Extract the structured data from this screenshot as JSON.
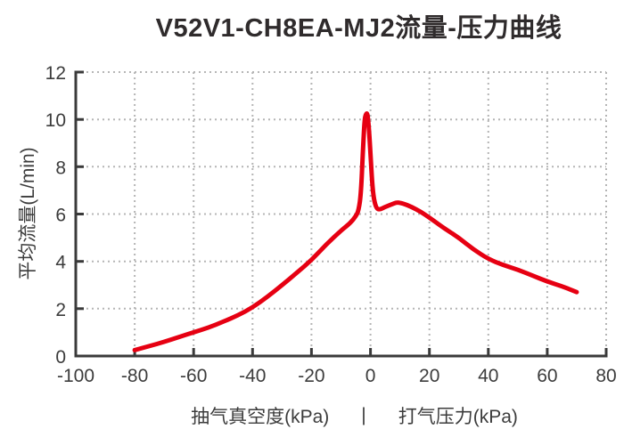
{
  "title": "V52V1-CH8EA-MJ2流量-压力曲线",
  "colors": {
    "curve": "#e60012",
    "axis": "#3a3a3a",
    "grid": "#b5b5b5",
    "text": "#3c3c3c",
    "title_text": "#2f2b2c",
    "background": "#ffffff"
  },
  "chart_data": {
    "type": "line",
    "title": "V52V1-CH8EA-MJ2流量-压力曲线",
    "ylabel": "平均流量(L/min)",
    "xlabel_left": "抽气真空度(kPa)",
    "xlabel_separator": "|",
    "xlabel_right": "打气压力(kPa)",
    "xlim": [
      -100,
      80
    ],
    "ylim": [
      0,
      12
    ],
    "x_ticks": [
      -100,
      -80,
      -60,
      -40,
      -20,
      0,
      20,
      40,
      60,
      80
    ],
    "y_ticks": [
      0,
      2,
      4,
      6,
      8,
      10,
      12
    ],
    "grid": true,
    "legend": "none",
    "series": [
      {
        "name": "流量-压力曲线",
        "color": "#e60012",
        "points": [
          [
            -80,
            0.25
          ],
          [
            -75,
            0.42
          ],
          [
            -70,
            0.6
          ],
          [
            -65,
            0.8
          ],
          [
            -60,
            1.0
          ],
          [
            -55,
            1.2
          ],
          [
            -50,
            1.45
          ],
          [
            -45,
            1.72
          ],
          [
            -40,
            2.05
          ],
          [
            -35,
            2.5
          ],
          [
            -30,
            3.0
          ],
          [
            -25,
            3.52
          ],
          [
            -20,
            4.05
          ],
          [
            -15,
            4.72
          ],
          [
            -10,
            5.3
          ],
          [
            -7,
            5.6
          ],
          [
            -5,
            5.9
          ],
          [
            -4,
            6.15
          ],
          [
            -3.2,
            6.9
          ],
          [
            -2.6,
            8.6
          ],
          [
            -2,
            10.0
          ],
          [
            -1.5,
            10.25
          ],
          [
            -1,
            10.25
          ],
          [
            -0.5,
            9.6
          ],
          [
            0,
            8.5
          ],
          [
            0.6,
            7.3
          ],
          [
            1.2,
            6.6
          ],
          [
            2,
            6.25
          ],
          [
            3,
            6.18
          ],
          [
            5,
            6.3
          ],
          [
            7,
            6.4
          ],
          [
            9,
            6.5
          ],
          [
            11,
            6.45
          ],
          [
            14,
            6.3
          ],
          [
            17,
            6.1
          ],
          [
            20,
            5.85
          ],
          [
            25,
            5.4
          ],
          [
            30,
            5.0
          ],
          [
            35,
            4.5
          ],
          [
            40,
            4.1
          ],
          [
            45,
            3.85
          ],
          [
            50,
            3.65
          ],
          [
            55,
            3.4
          ],
          [
            60,
            3.15
          ],
          [
            65,
            2.95
          ],
          [
            70,
            2.7
          ]
        ]
      }
    ]
  }
}
